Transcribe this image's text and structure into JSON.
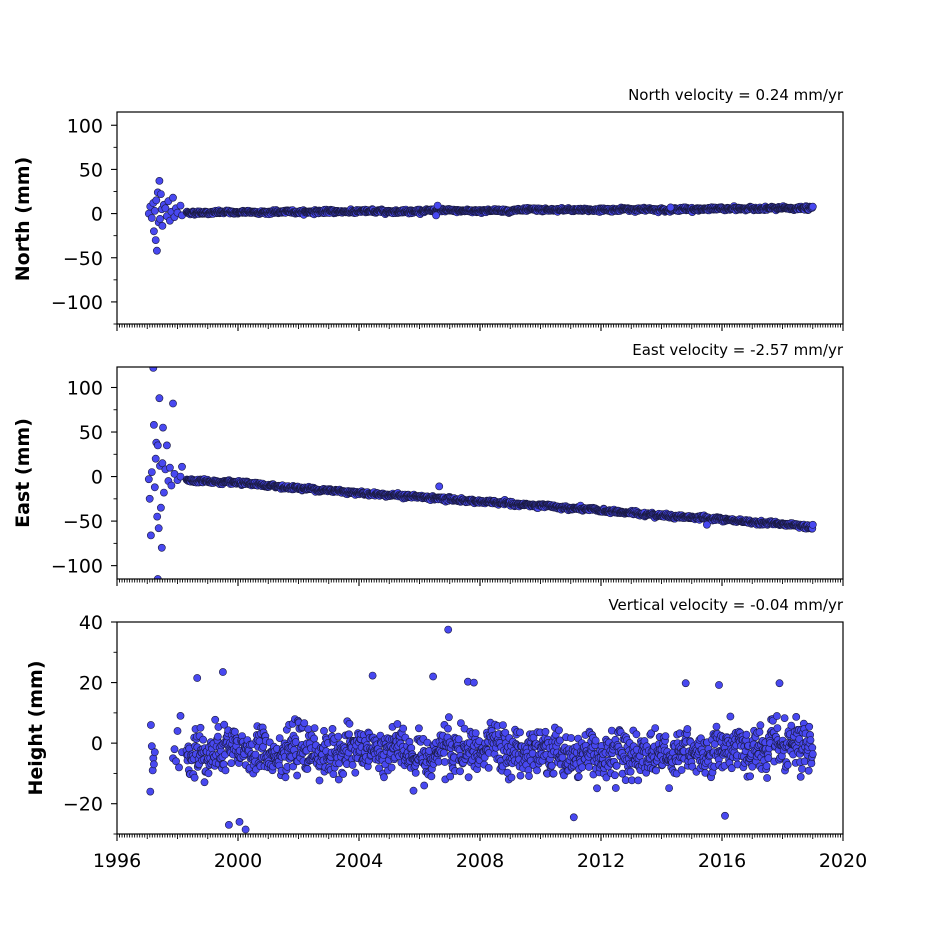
{
  "chart_data": [
    {
      "type": "scatter",
      "title": "North velocity = 0.24 mm/yr",
      "ylabel": "North (mm)",
      "xlim": [
        1996,
        2020
      ],
      "ylim": [
        -125,
        115
      ],
      "yticks": [
        100,
        50,
        0,
        -50,
        -100
      ],
      "ytick_labels": [
        "100",
        "50",
        "0",
        "−50",
        "−100"
      ],
      "marker_color": "#4848f0",
      "model": {
        "start_year": 1998.3,
        "end_year": 2019.0,
        "start_value": 1.0,
        "end_value": 6.0,
        "scatter": 1.6
      },
      "early_points": {
        "x": [
          1997.05,
          1997.1,
          1997.15,
          1997.2,
          1997.22,
          1997.25,
          1997.28,
          1997.3,
          1997.32,
          1997.35,
          1997.38,
          1997.4,
          1997.42,
          1997.45,
          1997.48,
          1997.5,
          1997.55,
          1997.6,
          1997.65,
          1997.7,
          1997.75,
          1997.8,
          1997.85,
          1997.9,
          1997.95,
          1998.0,
          1998.1,
          1998.15
        ],
        "y": [
          0,
          8,
          -5,
          12,
          -20,
          3,
          -30,
          15,
          -42,
          24,
          -10,
          37,
          -6,
          22,
          5,
          -14,
          10,
          6,
          -3,
          14,
          -8,
          2,
          18,
          -4,
          6,
          1,
          9,
          -2
        ]
      },
      "outliers": {
        "x": [
          2006.55,
          2006.6,
          2014.3
        ],
        "y": [
          -2,
          9,
          7
        ]
      }
    },
    {
      "type": "scatter",
      "title": "East velocity = -2.57 mm/yr",
      "ylabel": "East (mm)",
      "xlim": [
        1996,
        2020
      ],
      "ylim": [
        -115,
        123
      ],
      "yticks": [
        100,
        50,
        0,
        -50,
        -100
      ],
      "ytick_labels": [
        "100",
        "50",
        "0",
        "−50",
        "−100"
      ],
      "marker_color": "#4848f0",
      "model": {
        "start_year": 1998.3,
        "end_year": 2019.0,
        "start_value": -3.5,
        "end_value": -56.0,
        "scatter": 1.8
      },
      "early_points": {
        "x": [
          1997.05,
          1997.08,
          1997.12,
          1997.15,
          1997.2,
          1997.22,
          1997.25,
          1997.28,
          1997.3,
          1997.33,
          1997.35,
          1997.38,
          1997.4,
          1997.42,
          1997.45,
          1997.48,
          1997.5,
          1997.52,
          1997.55,
          1997.6,
          1997.65,
          1997.7,
          1997.75,
          1997.8,
          1997.85,
          1997.9,
          1998.0,
          1998.1,
          1998.15
        ],
        "y": [
          -3,
          -25,
          -66,
          5,
          122,
          58,
          -12,
          20,
          38,
          -45,
          35,
          -58,
          88,
          12,
          -35,
          -80,
          15,
          55,
          -18,
          8,
          35,
          -5,
          10,
          -10,
          82,
          3,
          -4,
          0,
          11
        ]
      },
      "outliers": {
        "x": [
          1997.35,
          2006.65,
          2015.5
        ],
        "y": [
          -115,
          -11,
          -54
        ]
      }
    },
    {
      "type": "scatter",
      "title": "Vertical velocity = -0.04 mm/yr",
      "ylabel": "Height (mm)",
      "xlabel": "",
      "xlim": [
        1996,
        2020
      ],
      "ylim": [
        -30,
        40
      ],
      "yticks": [
        40,
        20,
        0,
        -20
      ],
      "ytick_labels": [
        "40",
        "20",
        "0",
        "−20"
      ],
      "xticks": [
        1996,
        2000,
        2004,
        2008,
        2012,
        2016,
        2020
      ],
      "xtick_labels": [
        "1996",
        "2000",
        "2004",
        "2008",
        "2012",
        "2016",
        "2020"
      ],
      "marker_color": "#4848f0",
      "model": {
        "start_year": 1998.3,
        "end_year": 2019.0,
        "start_value": -3.0,
        "end_value": -3.0,
        "scatter": 6.5
      },
      "early_points": {
        "x": [
          1997.1,
          1997.12,
          1997.15,
          1997.18,
          1997.2,
          1997.22,
          1997.25,
          1997.85,
          1997.9,
          1997.95,
          1998.0,
          1998.05,
          1998.1,
          1998.15
        ],
        "y": [
          -16,
          6,
          -1,
          -9,
          -5,
          -7,
          -3,
          -5,
          -2,
          -6,
          4,
          -8,
          9,
          -3
        ]
      },
      "outliers": {
        "x": [
          2006.95,
          2006.45,
          1999.5,
          2004.45,
          1998.65,
          2007.6,
          2007.8,
          2014.8,
          2015.9,
          2017.9,
          1999.7,
          2000.25,
          2000.05,
          2011.1,
          2016.1
        ],
        "y": [
          37.5,
          22,
          23.5,
          22.3,
          21.5,
          20.3,
          20,
          19.8,
          19.2,
          19.8,
          -27,
          -28.5,
          -26,
          -24.5,
          -24
        ]
      }
    }
  ]
}
